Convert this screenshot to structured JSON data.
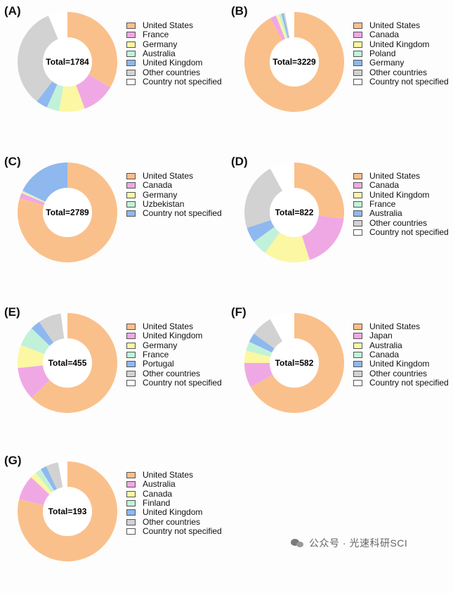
{
  "colors": {
    "orange": "#fac08b",
    "pink": "#f0a8e4",
    "yellow": "#fbf7a3",
    "mint": "#c1f2d9",
    "blue": "#8fb8ef",
    "gray": "#d2d2d2",
    "white": "#ffffff"
  },
  "chart_data": [
    {
      "type": "pie",
      "label": "(A)",
      "center_text": "Total=1784",
      "slices": [
        {
          "name": "United States",
          "value": 27.0,
          "color": "orange"
        },
        {
          "name": "France",
          "value": 8.7,
          "color": "pink"
        },
        {
          "name": "Germany",
          "value": 6.7,
          "color": "yellow"
        },
        {
          "name": "Australia",
          "value": 3.3,
          "color": "mint"
        },
        {
          "name": "United Kingdom",
          "value": 3.0,
          "color": "blue"
        },
        {
          "name": "Other countries",
          "value": 26.8,
          "color": "gray"
        },
        {
          "name": "Country not specified",
          "value": 5.0,
          "color": "white"
        }
      ]
    },
    {
      "type": "pie",
      "label": "(B)",
      "center_text": "Total=3229",
      "slices": [
        {
          "name": "United States",
          "value": 92.0,
          "color": "orange"
        },
        {
          "name": "Canada",
          "value": 2.0,
          "color": "pink"
        },
        {
          "name": "United Kingdom",
          "value": 1.0,
          "color": "yellow"
        },
        {
          "name": "Poland",
          "value": 0.8,
          "color": "mint"
        },
        {
          "name": "Germany",
          "value": 0.7,
          "color": "blue"
        },
        {
          "name": "Other countries",
          "value": 0.5,
          "color": "gray"
        },
        {
          "name": "Country not specified",
          "value": 3.0,
          "color": "white"
        }
      ]
    },
    {
      "type": "pie",
      "label": "(C)",
      "center_text": "Total=2789",
      "slices": [
        {
          "name": "United States",
          "value": 79.6,
          "color": "orange"
        },
        {
          "name": "Canada",
          "value": 1.8,
          "color": "pink"
        },
        {
          "name": "Germany",
          "value": 0.4,
          "color": "yellow"
        },
        {
          "name": "Uzbekistan",
          "value": 0.4,
          "color": "mint"
        },
        {
          "name": "Country not specified",
          "value": 17.8,
          "color": "blue"
        }
      ]
    },
    {
      "type": "pie",
      "label": "(D)",
      "center_text": "Total=822",
      "slices": [
        {
          "name": "United States",
          "value": 27.0,
          "color": "orange"
        },
        {
          "name": "Canada",
          "value": 18.0,
          "color": "pink"
        },
        {
          "name": "United Kingdom",
          "value": 15.0,
          "color": "yellow"
        },
        {
          "name": "France",
          "value": 5.0,
          "color": "mint"
        },
        {
          "name": "Australia",
          "value": 5.0,
          "color": "blue"
        },
        {
          "name": "Other countries",
          "value": 22.0,
          "color": "gray"
        },
        {
          "name": "Country not specified",
          "value": 8.0,
          "color": "white"
        }
      ]
    },
    {
      "type": "pie",
      "label": "(E)",
      "center_text": "Total=455",
      "slices": [
        {
          "name": "United States",
          "value": 59.0,
          "color": "orange"
        },
        {
          "name": "United Kingdom",
          "value": 10.0,
          "color": "pink"
        },
        {
          "name": "Germany",
          "value": 7.0,
          "color": "yellow"
        },
        {
          "name": "France",
          "value": 6.0,
          "color": "mint"
        },
        {
          "name": "Portugal",
          "value": 3.0,
          "color": "blue"
        },
        {
          "name": "Other countries",
          "value": 7.0,
          "color": "gray"
        },
        {
          "name": "Country not specified",
          "value": 2.0,
          "color": "white"
        }
      ]
    },
    {
      "type": "pie",
      "label": "(F)",
      "center_text": "Total=582",
      "slices": [
        {
          "name": "United States",
          "value": 67.0,
          "color": "orange"
        },
        {
          "name": "Japan",
          "value": 8.0,
          "color": "pink"
        },
        {
          "name": "Australia",
          "value": 4.0,
          "color": "yellow"
        },
        {
          "name": "Canada",
          "value": 3.0,
          "color": "mint"
        },
        {
          "name": "United Kingdom",
          "value": 3.0,
          "color": "blue"
        },
        {
          "name": "Other countries",
          "value": 7.0,
          "color": "gray"
        },
        {
          "name": "Country not specified",
          "value": 8.0,
          "color": "white"
        }
      ]
    },
    {
      "type": "pie",
      "label": "(G)",
      "center_text": "Total=193",
      "slices": [
        {
          "name": "United States",
          "value": 79.0,
          "color": "orange"
        },
        {
          "name": "Australia",
          "value": 8.0,
          "color": "pink"
        },
        {
          "name": "Canada",
          "value": 2.0,
          "color": "yellow"
        },
        {
          "name": "Finland",
          "value": 2.0,
          "color": "mint"
        },
        {
          "name": "United Kingdom",
          "value": 2.0,
          "color": "blue"
        },
        {
          "name": "Other countries",
          "value": 4.0,
          "color": "gray"
        },
        {
          "name": "Country not specified",
          "value": 3.0,
          "color": "white"
        }
      ]
    }
  ],
  "watermark": {
    "text": "公众号 · 光速科研SCI",
    "icon": "wechat-icon"
  }
}
